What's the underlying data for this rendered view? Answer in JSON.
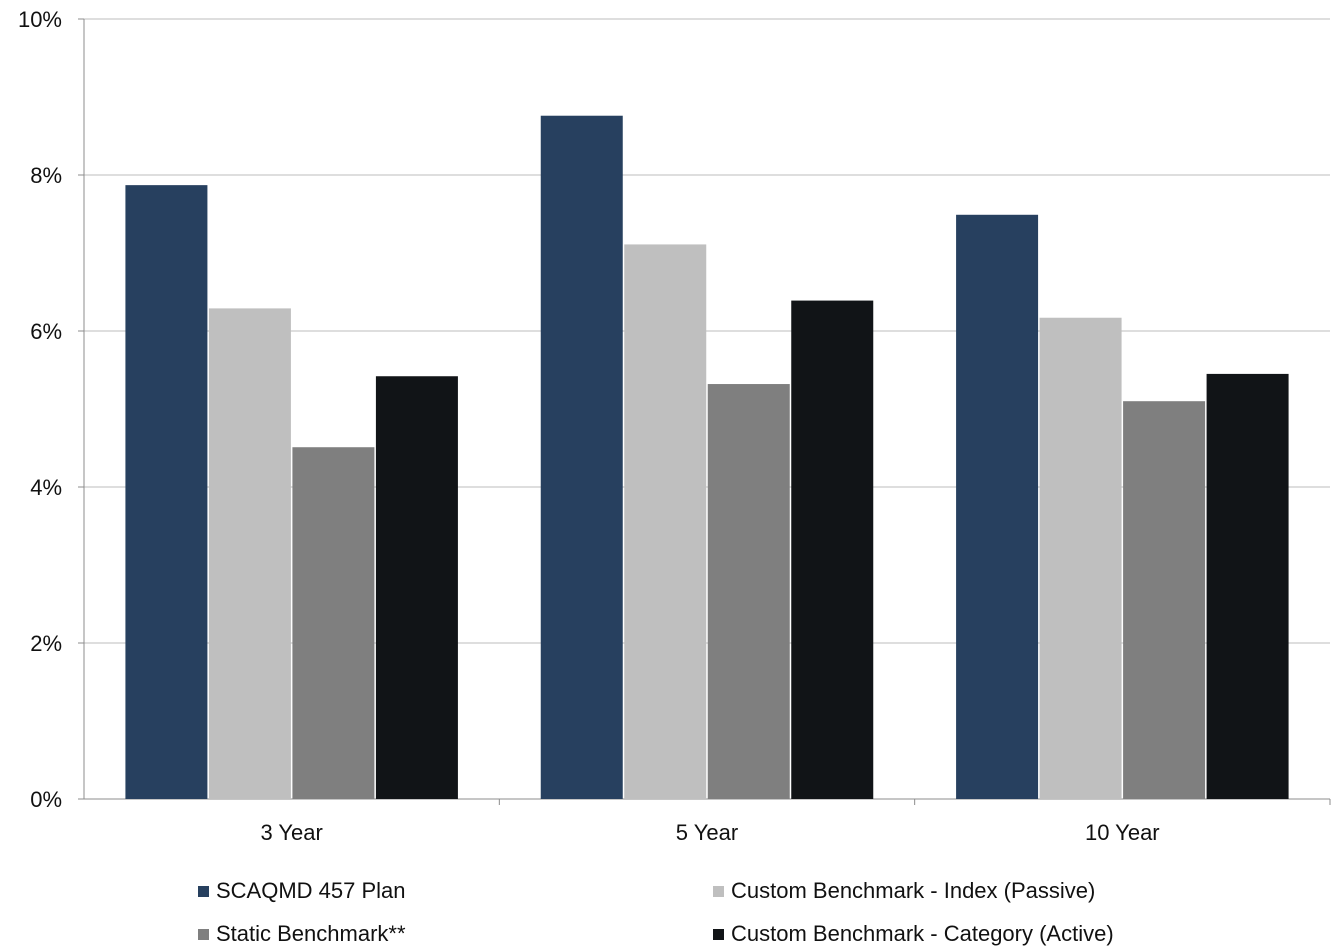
{
  "chart_data": {
    "type": "bar",
    "categories": [
      "3 Year",
      "5 Year",
      "10 Year"
    ],
    "y_ticks": [
      "0%",
      "2%",
      "4%",
      "6%",
      "8%",
      "10%"
    ],
    "ylim": [
      0,
      10
    ],
    "grid": true,
    "legend_position": "bottom",
    "series": [
      {
        "name": "SCAQMD 457 Plan",
        "color": "#27405f",
        "values": [
          7.87,
          8.76,
          7.49
        ]
      },
      {
        "name": "Custom Benchmark - Index (Passive)",
        "color": "#bfbfbf",
        "values": [
          6.29,
          7.11,
          6.17
        ]
      },
      {
        "name": "Static Benchmark**",
        "color": "#7f7f7f",
        "values": [
          4.51,
          5.32,
          5.1
        ]
      },
      {
        "name": "Custom Benchmark - Category (Active)",
        "color": "#111417",
        "values": [
          5.42,
          6.39,
          5.45
        ]
      }
    ]
  }
}
